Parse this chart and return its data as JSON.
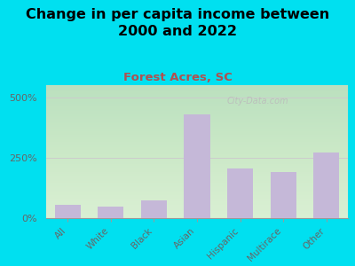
{
  "title": "Change in per capita income between\n2000 and 2022",
  "subtitle": "Forest Acres, SC",
  "categories": [
    "All",
    "White",
    "Black",
    "Asian",
    "Hispanic",
    "Multirace",
    "Other"
  ],
  "values": [
    55,
    48,
    75,
    430,
    205,
    190,
    270
  ],
  "bar_color": "#c5b8d8",
  "background_outer": "#00e0f0",
  "background_plot": "#e8f5e2",
  "title_fontsize": 11.5,
  "subtitle_fontsize": 9.5,
  "subtitle_color": "#b05050",
  "ytick_labels": [
    "0%",
    "250%",
    "500%"
  ],
  "ytick_values": [
    0,
    250,
    500
  ],
  "ylim": [
    0,
    550
  ],
  "watermark": "City-Data.com",
  "watermark_color": "#bbbbbb"
}
